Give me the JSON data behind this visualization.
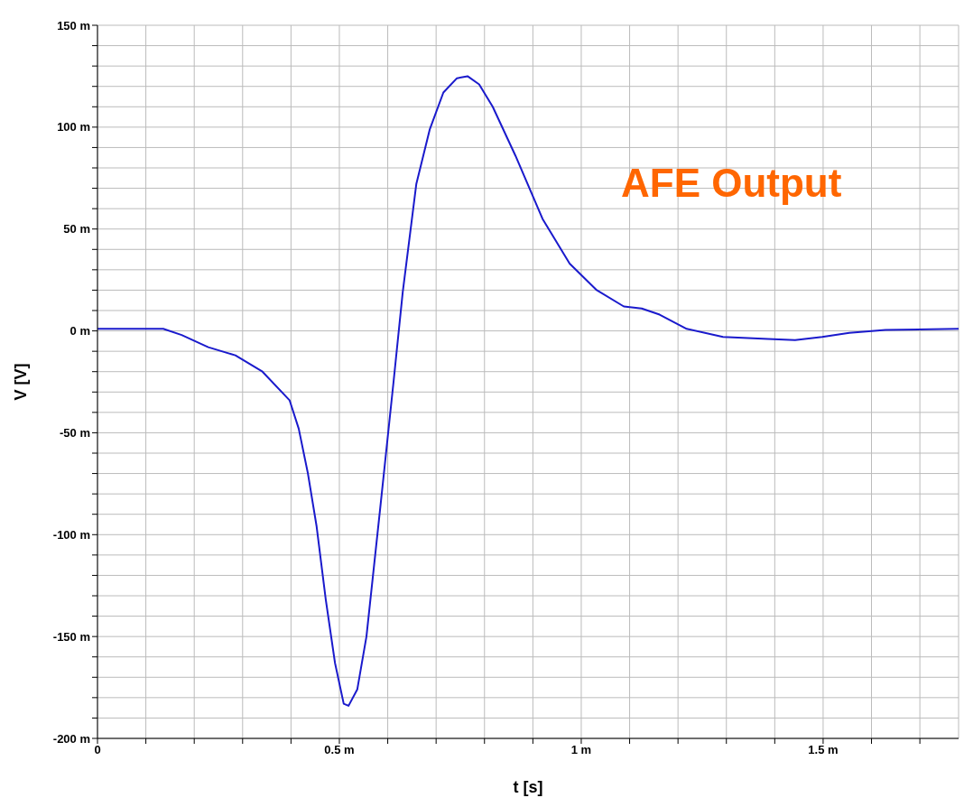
{
  "chart_data": {
    "type": "line",
    "xlabel": "t [s]",
    "ylabel": "V [V]",
    "annotations": [
      "AFE Output"
    ],
    "grid": true,
    "xlim": [
      0,
      1.78
    ],
    "xticks": [
      {
        "value": 0,
        "label": "0"
      },
      {
        "value": 0.1,
        "label": null
      },
      {
        "value": 0.2,
        "label": null
      },
      {
        "value": 0.3,
        "label": null
      },
      {
        "value": 0.4,
        "label": null
      },
      {
        "value": 0.5,
        "label": "0.5 m"
      },
      {
        "value": 0.6,
        "label": null
      },
      {
        "value": 0.7,
        "label": null
      },
      {
        "value": 0.8,
        "label": null
      },
      {
        "value": 0.9,
        "label": null
      },
      {
        "value": 1,
        "label": "1 m"
      },
      {
        "value": 1.1,
        "label": null
      },
      {
        "value": 1.2,
        "label": null
      },
      {
        "value": 1.3,
        "label": null
      },
      {
        "value": 1.4,
        "label": null
      },
      {
        "value": 1.5,
        "label": "1.5 m"
      },
      {
        "value": 1.6,
        "label": null
      },
      {
        "value": 1.7,
        "label": null
      }
    ],
    "ylim": [
      -200,
      150
    ],
    "yticks": [
      {
        "value": -200,
        "label": "-200 m"
      },
      {
        "value": -190,
        "label": null
      },
      {
        "value": -180,
        "label": null
      },
      {
        "value": -170,
        "label": null
      },
      {
        "value": -160,
        "label": null
      },
      {
        "value": -150,
        "label": "-150 m"
      },
      {
        "value": -140,
        "label": null
      },
      {
        "value": -130,
        "label": null
      },
      {
        "value": -120,
        "label": null
      },
      {
        "value": -110,
        "label": null
      },
      {
        "value": -100,
        "label": "-100 m"
      },
      {
        "value": -90,
        "label": null
      },
      {
        "value": -80,
        "label": null
      },
      {
        "value": -70,
        "label": null
      },
      {
        "value": -60,
        "label": null
      },
      {
        "value": -50,
        "label": "-50 m"
      },
      {
        "value": -40,
        "label": null
      },
      {
        "value": -30,
        "label": null
      },
      {
        "value": -20,
        "label": null
      },
      {
        "value": -10,
        "label": null
      },
      {
        "value": 0,
        "label": "0 m"
      },
      {
        "value": 10,
        "label": null
      },
      {
        "value": 20,
        "label": null
      },
      {
        "value": 30,
        "label": null
      },
      {
        "value": 40,
        "label": null
      },
      {
        "value": 50,
        "label": "50 m"
      },
      {
        "value": 60,
        "label": null
      },
      {
        "value": 70,
        "label": null
      },
      {
        "value": 80,
        "label": null
      },
      {
        "value": 90,
        "label": null
      },
      {
        "value": 100,
        "label": "100 m"
      },
      {
        "value": 110,
        "label": null
      },
      {
        "value": 120,
        "label": null
      },
      {
        "value": 130,
        "label": null
      },
      {
        "value": 140,
        "label": null
      },
      {
        "value": 150,
        "label": "150 m"
      }
    ],
    "x": [
      0,
      0.136,
      0.174,
      0.229,
      0.285,
      0.341,
      0.397,
      0.416,
      0.435,
      0.453,
      0.472,
      0.491,
      0.509,
      0.519,
      0.537,
      0.556,
      0.584,
      0.612,
      0.631,
      0.659,
      0.687,
      0.715,
      0.743,
      0.765,
      0.789,
      0.817,
      0.864,
      0.92,
      0.976,
      1.032,
      1.088,
      1.125,
      1.162,
      1.218,
      1.293,
      1.386,
      1.442,
      1.498,
      1.554,
      1.629,
      1.78
    ],
    "series": [
      {
        "color": "#1a1acc",
        "values": [
          1,
          1,
          -2,
          -8,
          -12,
          -20,
          -34,
          -48,
          -70,
          -96,
          -132,
          -163,
          -183,
          -184,
          -176,
          -150,
          -88,
          -25,
          19,
          72,
          99,
          117,
          124,
          125,
          121,
          110,
          86,
          55,
          33,
          20,
          12,
          11,
          8,
          1,
          -3,
          -4,
          -4.5,
          -3,
          -1,
          0.5,
          1
        ]
      }
    ]
  }
}
